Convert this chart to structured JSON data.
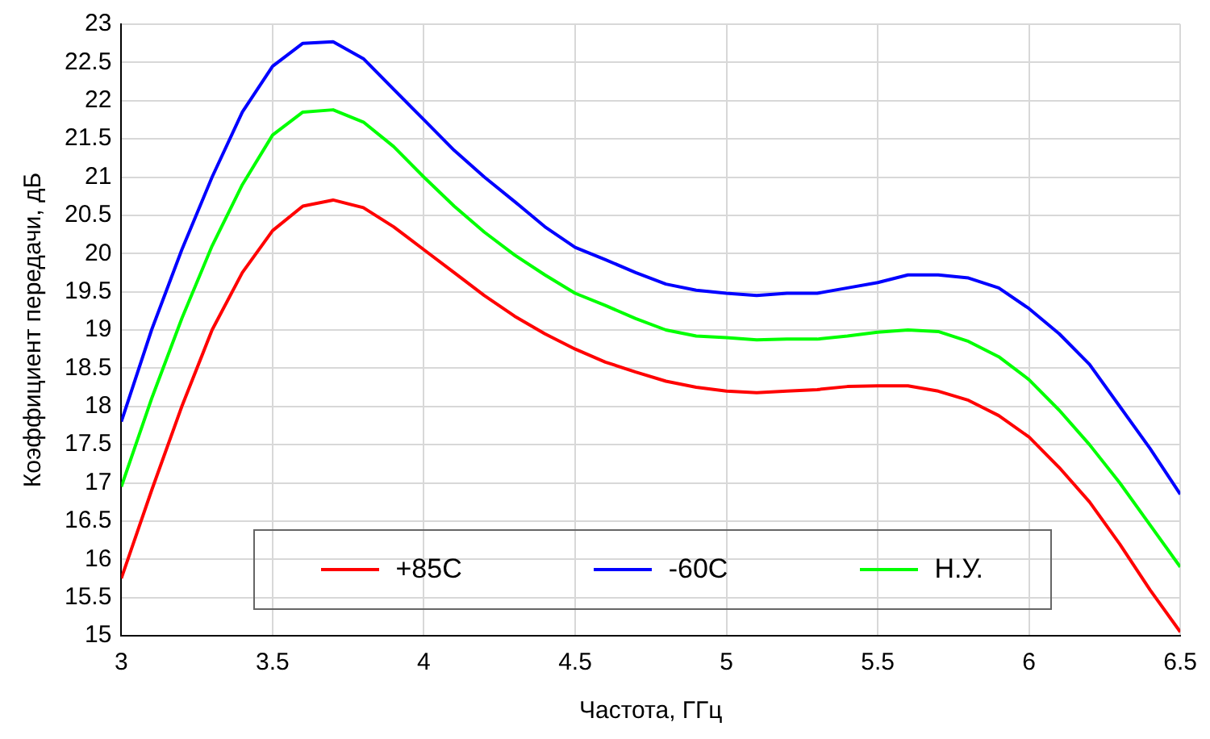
{
  "chart_data": {
    "type": "line",
    "xlabel": "Частота, ГГц",
    "ylabel": "Коэффициент передачи, дБ",
    "x": [
      3.0,
      3.1,
      3.2,
      3.3,
      3.4,
      3.5,
      3.6,
      3.7,
      3.8,
      3.9,
      4.0,
      4.1,
      4.2,
      4.3,
      4.4,
      4.5,
      4.6,
      4.7,
      4.8,
      4.9,
      5.0,
      5.1,
      5.2,
      5.3,
      5.4,
      5.5,
      5.6,
      5.7,
      5.8,
      5.9,
      6.0,
      6.1,
      6.2,
      6.3,
      6.4,
      6.5
    ],
    "series": [
      {
        "name": "+85C",
        "color": "#ff0000",
        "values": [
          15.75,
          16.9,
          18.0,
          19.0,
          19.75,
          20.3,
          20.62,
          20.7,
          20.6,
          20.35,
          20.05,
          19.75,
          19.45,
          19.18,
          18.95,
          18.75,
          18.58,
          18.45,
          18.33,
          18.25,
          18.2,
          18.18,
          18.2,
          18.22,
          18.26,
          18.27,
          18.27,
          18.2,
          18.08,
          17.88,
          17.6,
          17.2,
          16.75,
          16.2,
          15.6,
          15.05
        ]
      },
      {
        "name": "-60C",
        "color": "#0000ff",
        "values": [
          17.8,
          19.0,
          20.05,
          21.0,
          21.85,
          22.45,
          22.75,
          22.77,
          22.55,
          22.15,
          21.75,
          21.35,
          21.0,
          20.68,
          20.35,
          20.08,
          19.92,
          19.75,
          19.6,
          19.52,
          19.48,
          19.45,
          19.48,
          19.48,
          19.55,
          19.62,
          19.72,
          19.72,
          19.68,
          19.55,
          19.28,
          18.95,
          18.55,
          18.0,
          17.45,
          16.85
        ]
      },
      {
        "name": "Н.У.",
        "color": "#00ff00",
        "values": [
          16.95,
          18.1,
          19.15,
          20.1,
          20.9,
          21.55,
          21.85,
          21.88,
          21.72,
          21.4,
          21.0,
          20.62,
          20.28,
          19.98,
          19.72,
          19.48,
          19.32,
          19.15,
          19.0,
          18.92,
          18.9,
          18.87,
          18.88,
          18.88,
          18.92,
          18.97,
          19.0,
          18.98,
          18.85,
          18.65,
          18.35,
          17.95,
          17.5,
          17.0,
          16.45,
          15.9
        ]
      }
    ],
    "xlim": [
      3,
      6.5
    ],
    "xticks": [
      3,
      3.5,
      4,
      4.5,
      5,
      5.5,
      6,
      6.5
    ],
    "ylim": [
      15,
      23
    ],
    "yticks": [
      15,
      15.5,
      16,
      16.5,
      17,
      17.5,
      18,
      18.5,
      19,
      19.5,
      20,
      20.5,
      21,
      21.5,
      22,
      22.5,
      23
    ],
    "grid": true,
    "legend": "bottom",
    "marker": "none",
    "line_style": "solid"
  }
}
